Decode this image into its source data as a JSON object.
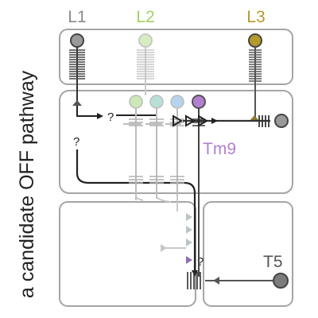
{
  "side_title": "a candidate OFF pathway",
  "neurons": {
    "L1": {
      "label": "L1",
      "color": "#8a8a8a"
    },
    "L2": {
      "label": "L2",
      "color": "#9fd35a"
    },
    "L3": {
      "label": "L3",
      "color": "#b39a2a"
    },
    "Tm9": {
      "label": "Tm9",
      "color": "#b27fd1"
    },
    "T5": {
      "label": "T5",
      "color": "#6e6e6e"
    }
  },
  "unknown_marks": [
    "?",
    "?",
    "?"
  ],
  "colors": {
    "box_stroke": "#a5a5a5",
    "dark_line": "#333333",
    "light_line": "#c8c8c8",
    "mid_line": "#b5b5b5",
    "ghost_arrow": "#bcc4c8",
    "tm9_arrow": "#8f6fb0",
    "dot_green": "#cbe8b6",
    "dot_teal": "#b8e0d6",
    "dot_blue": "#b7d3ee",
    "dot_purple": "#b27fd1",
    "t5_dot": "#7c7c7c"
  }
}
